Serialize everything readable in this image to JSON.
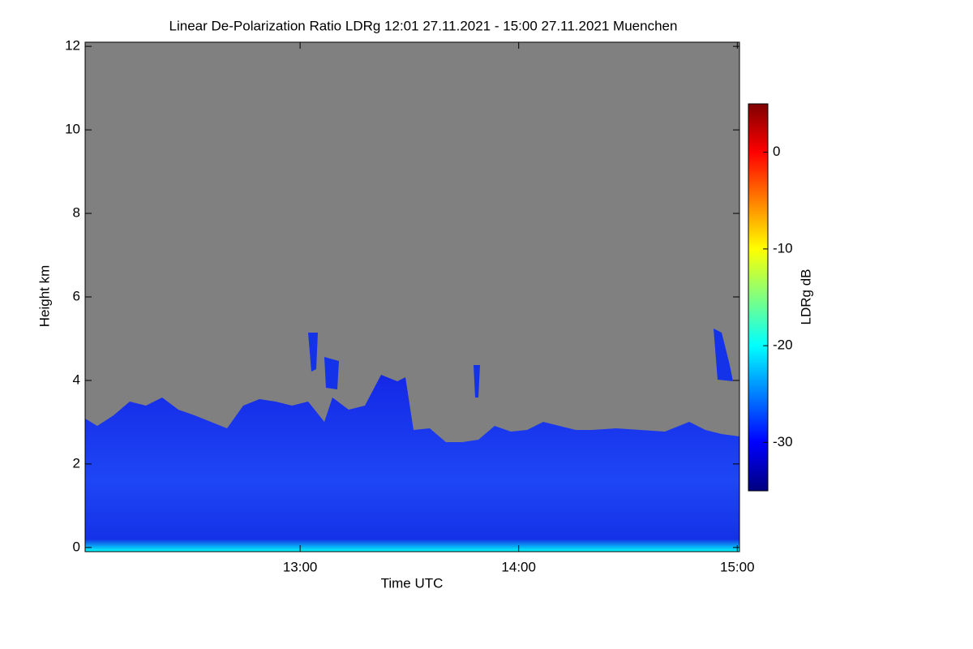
{
  "chart_data": {
    "type": "heatmap",
    "title": "Linear De-Polarization Ratio LDRg   12:01 27.11.2021 - 15:00 27.11.2021 Muenchen",
    "xlabel": "Time UTC",
    "ylabel": "Height km",
    "xlim": [
      12.0167,
      15.01
    ],
    "xticks": [
      {
        "value": 13,
        "label": "13:00"
      },
      {
        "value": 14,
        "label": "14:00"
      },
      {
        "value": 15,
        "label": "15:00"
      }
    ],
    "ylim": [
      -0.1,
      12.1
    ],
    "yticks": [
      0,
      2,
      4,
      6,
      8,
      10,
      12
    ],
    "colormap": "jet",
    "missing_color": "#808080",
    "colorbar": {
      "label": "LDRg dB",
      "lim": [
        -35,
        5
      ],
      "ticks": [
        0,
        -10,
        -20,
        -30
      ]
    }
  }
}
